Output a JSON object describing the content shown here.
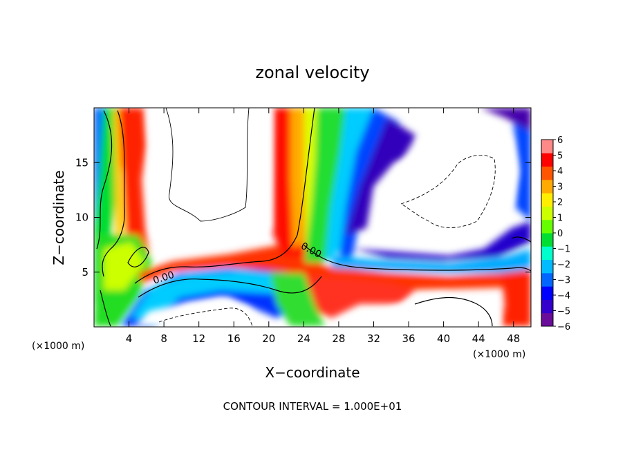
{
  "chart_data": {
    "type": "heatmap",
    "title": "zonal velocity",
    "xlabel": "X−coordinate",
    "ylabel": "Z−coordinate",
    "x_unit_left": "(×1000 m)",
    "x_unit_right": "(×1000 m)",
    "footer": "CONTOUR INTERVAL = 1.000E+01",
    "xlim": [
      0,
      50
    ],
    "ylim": [
      0,
      20
    ],
    "x_ticks": [
      4,
      8,
      12,
      16,
      20,
      24,
      28,
      32,
      36,
      40,
      44,
      48
    ],
    "y_ticks": [
      5,
      10,
      15
    ],
    "grid": false,
    "contour_label": "0.00",
    "colorbar": {
      "min": -6,
      "max": 6,
      "ticks": [
        6,
        5,
        4,
        3,
        2,
        1,
        0,
        -1,
        -2,
        -3,
        -4,
        -5,
        -6
      ],
      "tick_labels": [
        "6",
        "5",
        "4",
        "3",
        "2",
        "1",
        "0",
        "−1",
        "−2",
        "−3",
        "−4",
        "−5",
        "−6"
      ],
      "colors": [
        "#6a0d9a",
        "#3300cc",
        "#0000ff",
        "#0066ff",
        "#00bbff",
        "#00ffcc",
        "#00dd33",
        "#66ff00",
        "#ccff00",
        "#ffee00",
        "#ffaa00",
        "#ff5500",
        "#ff0000",
        "#ff8888"
      ],
      "out_of_range_color": "#ffffff"
    }
  }
}
